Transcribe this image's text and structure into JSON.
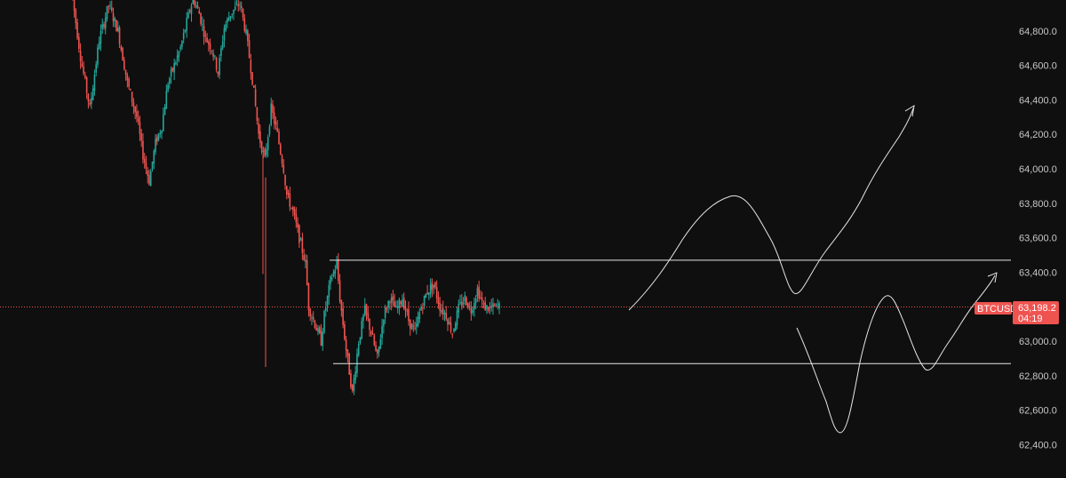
{
  "colors": {
    "background": "#0f0f0f",
    "axis_text": "#c8c8c8",
    "up": "#26a69a",
    "down": "#ef5350",
    "drawings": "#e6e6e6",
    "price_line": "#ef5350",
    "badge": "#ef5350"
  },
  "price_axis": {
    "ticks": [
      "64,800.0",
      "64,600.0",
      "64,400.0",
      "64,200.0",
      "64,000.0",
      "63,800.0",
      "63,600.0",
      "63,400.0",
      "63,000.0",
      "62,800.0",
      "62,600.0",
      "62,400.0"
    ]
  },
  "symbol_label": "BTCUSD",
  "current_price_label": "63,198.2",
  "countdown": "04:19",
  "chart_data": {
    "type": "candlestick",
    "symbol": "BTCUSD",
    "ylim": [
      62300,
      65000
    ],
    "y_ticks": [
      64800,
      64600,
      64400,
      64200,
      64000,
      63800,
      63600,
      63400,
      63000,
      62800,
      62600,
      62400
    ],
    "grid": false,
    "last_price": 63198.2,
    "series_close_path": [
      [
        0,
        65050
      ],
      [
        6,
        64650
      ],
      [
        12,
        64350
      ],
      [
        18,
        64750
      ],
      [
        24,
        64950
      ],
      [
        30,
        64800
      ],
      [
        36,
        64500
      ],
      [
        42,
        64300
      ],
      [
        46,
        64080
      ],
      [
        50,
        63930
      ],
      [
        54,
        64150
      ],
      [
        58,
        64250
      ],
      [
        62,
        64500
      ],
      [
        66,
        64600
      ],
      [
        70,
        64700
      ],
      [
        74,
        64850
      ],
      [
        78,
        64990
      ],
      [
        82,
        64900
      ],
      [
        86,
        64760
      ],
      [
        90,
        64700
      ],
      [
        94,
        64560
      ],
      [
        98,
        64820
      ],
      [
        102,
        64900
      ],
      [
        108,
        64960
      ],
      [
        112,
        64780
      ],
      [
        116,
        64520
      ],
      [
        120,
        64200
      ],
      [
        124,
        64050
      ],
      [
        128,
        64350
      ],
      [
        132,
        64200
      ],
      [
        136,
        64000
      ],
      [
        138,
        63850
      ],
      [
        142,
        63750
      ],
      [
        146,
        63600
      ],
      [
        150,
        63450
      ],
      [
        152,
        63200
      ],
      [
        156,
        63100
      ],
      [
        160,
        63000
      ],
      [
        162,
        63150
      ],
      [
        166,
        63350
      ],
      [
        170,
        63450
      ],
      [
        172,
        63250
      ],
      [
        176,
        62950
      ],
      [
        180,
        62700
      ],
      [
        184,
        63000
      ],
      [
        188,
        63180
      ],
      [
        192,
        63050
      ],
      [
        196,
        62900
      ],
      [
        200,
        63150
      ],
      [
        204,
        63250
      ],
      [
        208,
        63180
      ],
      [
        212,
        63250
      ],
      [
        216,
        63120
      ],
      [
        220,
        63050
      ],
      [
        224,
        63200
      ],
      [
        228,
        63290
      ],
      [
        232,
        63330
      ],
      [
        236,
        63200
      ],
      [
        240,
        63150
      ],
      [
        244,
        63050
      ],
      [
        248,
        63190
      ],
      [
        252,
        63250
      ],
      [
        256,
        63180
      ],
      [
        260,
        63300
      ],
      [
        264,
        63200
      ],
      [
        268,
        63190
      ],
      [
        274,
        63200
      ]
    ],
    "horizontal_levels": [
      63470,
      62870
    ],
    "annotations": [
      "projected path 1 (up-down-up arrow)",
      "projected path 2 (down-up-down-up arrow)"
    ]
  }
}
